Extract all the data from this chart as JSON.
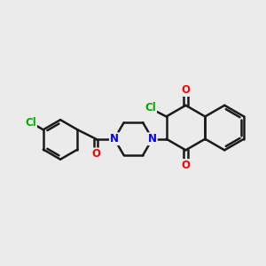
{
  "bg_color": "#ebebeb",
  "bond_color": "#1a1a1a",
  "bond_width": 1.8,
  "atom_colors": {
    "O": "#ff0000",
    "N": "#0000ff",
    "Cl": "#00aa00"
  },
  "font_size": 8.5,
  "fig_size": [
    3.0,
    3.0
  ],
  "dpi": 100
}
